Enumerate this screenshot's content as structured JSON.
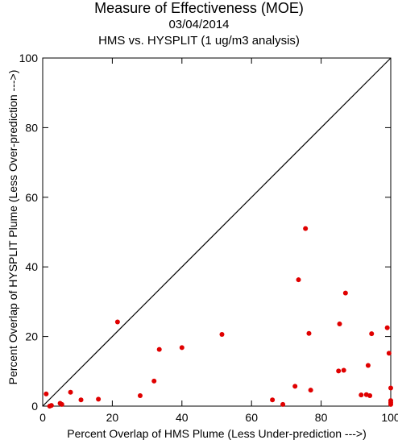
{
  "chart_data": {
    "type": "scatter",
    "title": "Measure of Effectiveness (MOE)",
    "subtitle_date": "03/04/2014",
    "subtitle_comparison": "HMS vs. HYSPLIT  (1 ug/m3 analysis)",
    "xlabel": "Percent Overlap of HMS Plume (Less Under-prediction --->)",
    "ylabel": "Percent Overlap of HYSPLIT Plume (Less Over-prediction --->)",
    "xlim": [
      0,
      100
    ],
    "ylim": [
      0,
      100
    ],
    "xticks": [
      0,
      20,
      40,
      60,
      80,
      100
    ],
    "yticks": [
      0,
      20,
      40,
      60,
      80,
      100
    ],
    "grid": false,
    "point_color": "#e00000",
    "reference_line": "diagonal y = x",
    "points": [
      {
        "x": 1.0,
        "y": 3.5
      },
      {
        "x": 2.0,
        "y": 0.0
      },
      {
        "x": 2.5,
        "y": 0.2
      },
      {
        "x": 5.0,
        "y": 0.8
      },
      {
        "x": 5.5,
        "y": 0.5
      },
      {
        "x": 8.0,
        "y": 4.0
      },
      {
        "x": 11.0,
        "y": 1.8
      },
      {
        "x": 16.0,
        "y": 2.0
      },
      {
        "x": 21.5,
        "y": 24.2
      },
      {
        "x": 28.0,
        "y": 3.0
      },
      {
        "x": 32.0,
        "y": 7.2
      },
      {
        "x": 33.5,
        "y": 16.3
      },
      {
        "x": 40.0,
        "y": 16.8
      },
      {
        "x": 51.5,
        "y": 20.6
      },
      {
        "x": 66.0,
        "y": 1.8
      },
      {
        "x": 69.0,
        "y": 0.5
      },
      {
        "x": 72.5,
        "y": 5.7
      },
      {
        "x": 73.5,
        "y": 36.3
      },
      {
        "x": 75.5,
        "y": 51.0
      },
      {
        "x": 76.5,
        "y": 20.9
      },
      {
        "x": 77.0,
        "y": 4.6
      },
      {
        "x": 85.0,
        "y": 10.1
      },
      {
        "x": 85.3,
        "y": 23.6
      },
      {
        "x": 86.5,
        "y": 10.3
      },
      {
        "x": 87.0,
        "y": 32.5
      },
      {
        "x": 91.5,
        "y": 3.2
      },
      {
        "x": 93.0,
        "y": 3.3
      },
      {
        "x": 93.5,
        "y": 11.7
      },
      {
        "x": 94.0,
        "y": 3.0
      },
      {
        "x": 94.5,
        "y": 20.8
      },
      {
        "x": 99.0,
        "y": 22.5
      },
      {
        "x": 99.5,
        "y": 15.2
      },
      {
        "x": 100.0,
        "y": 5.2
      },
      {
        "x": 100.0,
        "y": 1.6
      },
      {
        "x": 100.0,
        "y": 1.0
      },
      {
        "x": 100.0,
        "y": 0.5
      }
    ]
  }
}
